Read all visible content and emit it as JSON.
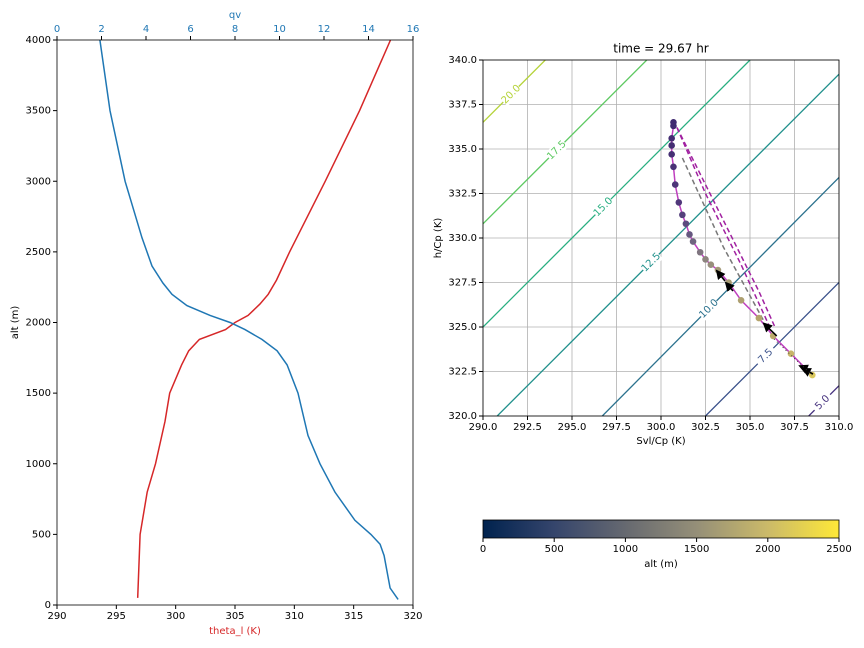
{
  "chart_data": [
    {
      "type": "profile",
      "xlabel": "theta_l (K)",
      "xlabel_color": "#d62728",
      "x2label": "qv",
      "x2_color": "#1f77b4",
      "ylabel": "alt (m)",
      "xlim": [
        290,
        320
      ],
      "xticks": [
        290,
        295,
        300,
        305,
        310,
        315,
        320
      ],
      "x2lim": [
        0,
        16
      ],
      "x2ticks": [
        0,
        2,
        4,
        6,
        8,
        10,
        12,
        14,
        16
      ],
      "ylim": [
        0,
        4000
      ],
      "yticks": [
        0,
        500,
        1000,
        1500,
        2000,
        2500,
        3000,
        3500,
        4000
      ],
      "series": [
        {
          "color": "#d62728",
          "axis": "x",
          "x": [
            296.8,
            297.0,
            297.6,
            298.3,
            299.1,
            299.5,
            300.5,
            301.1,
            302.0,
            304.2,
            305.0,
            306.1,
            307.1,
            307.8,
            308.5,
            309.6,
            312.6,
            315.5,
            318.1
          ],
          "y": [
            50,
            500,
            800,
            1000,
            1300,
            1500,
            1700,
            1800,
            1880,
            1950,
            2000,
            2050,
            2130,
            2200,
            2300,
            2500,
            3000,
            3500,
            4000
          ]
        },
        {
          "color": "#1f77b4",
          "axis": "x2",
          "x": [
            15.33,
            14.97,
            14.7,
            14.52,
            14.11,
            13.39,
            12.49,
            11.82,
            11.28,
            10.83,
            10.34,
            9.89,
            9.21,
            8.45,
            7.78,
            6.88,
            5.84,
            5.17,
            4.76,
            4.27,
            3.82,
            3.06,
            2.38,
            1.93
          ],
          "y": [
            40,
            120,
            350,
            430,
            500,
            600,
            800,
            1000,
            1200,
            1500,
            1700,
            1800,
            1880,
            1950,
            2000,
            2050,
            2120,
            2200,
            2280,
            2400,
            2600,
            3000,
            3500,
            4000
          ]
        }
      ]
    },
    {
      "type": "scatter",
      "title": "time = 29.67 hr",
      "xlabel": "Svl/Cp (K)",
      "ylabel": "h/Cp (K)",
      "xlim": [
        290,
        310
      ],
      "xticks": [
        {
          "value": 290,
          "label": "290.0"
        },
        {
          "value": 292.5,
          "label": "292.5"
        },
        {
          "value": 295,
          "label": "295.0"
        },
        {
          "value": 297.5,
          "label": "297.5"
        },
        {
          "value": 300,
          "label": "300.0"
        },
        {
          "value": 302.5,
          "label": "302.5"
        },
        {
          "value": 305,
          "label": "305.0"
        },
        {
          "value": 307.5,
          "label": "307.5"
        },
        {
          "value": 310,
          "label": "310.0"
        }
      ],
      "ylim": [
        320,
        340
      ],
      "yticks": [
        {
          "value": 320,
          "label": "320.0"
        },
        {
          "value": 322.5,
          "label": "322.5"
        },
        {
          "value": 325,
          "label": "325.0"
        },
        {
          "value": 327.5,
          "label": "327.5"
        },
        {
          "value": 330,
          "label": "330.0"
        },
        {
          "value": 332.5,
          "label": "332.5"
        },
        {
          "value": 335,
          "label": "335.0"
        },
        {
          "value": 337.5,
          "label": "337.5"
        },
        {
          "value": 340,
          "label": "340.0"
        }
      ],
      "grid": true,
      "contours": [
        {
          "label": "5.0",
          "color": "#46327e",
          "x": [
            308.3,
            310
          ],
          "y": [
            320,
            321.7
          ]
        },
        {
          "label": "7.5",
          "color": "#3b528b",
          "x": [
            302.5,
            310
          ],
          "y": [
            320,
            327.5
          ]
        },
        {
          "label": "10.0",
          "color": "#2c728e",
          "x": [
            296.7,
            310
          ],
          "y": [
            320,
            333.4
          ]
        },
        {
          "label": "12.5",
          "color": "#21918c",
          "x": [
            290.8,
            310
          ],
          "y": [
            320,
            339.2
          ]
        },
        {
          "label": "15.0",
          "color": "#28ae80",
          "x": [
            290,
            305
          ],
          "y": [
            325,
            340
          ]
        },
        {
          "label": "17.5",
          "color": "#5ec962",
          "x": [
            290,
            299.2
          ],
          "y": [
            330.8,
            340
          ]
        },
        {
          "label": "20.0",
          "color": "#b5d33a",
          "x": [
            290,
            293.5
          ],
          "y": [
            336.5,
            340
          ]
        }
      ],
      "line_color": "#bf3fbf",
      "dashed": [
        {
          "color": "#a020a0",
          "x": [
            300.9,
            302.5,
            304.5,
            306.2
          ],
          "y": [
            336.2,
            332.5,
            328.5,
            324.8
          ]
        },
        {
          "color": "#a020a0",
          "x": [
            300.9,
            303.5,
            305.5,
            306.4
          ],
          "y": [
            336.2,
            331.0,
            327.0,
            325.0
          ]
        },
        {
          "color": "#777777",
          "x": [
            301.2,
            303.5,
            305.8
          ],
          "y": [
            334.5,
            329.5,
            325.3
          ]
        }
      ],
      "points": {
        "x": [
          300.7,
          300.7,
          300.6,
          300.6,
          300.6,
          300.7,
          300.8,
          301.0,
          301.2,
          301.4,
          301.6,
          301.8,
          302.2,
          302.5,
          302.8,
          303.2,
          303.8,
          304.5,
          305.5,
          306.3,
          307.3,
          308.5
        ],
        "y": [
          336.5,
          336.3,
          335.6,
          335.2,
          334.7,
          334.0,
          333.0,
          332.0,
          331.3,
          330.8,
          330.2,
          329.8,
          329.2,
          328.8,
          328.5,
          328.2,
          327.5,
          326.5,
          325.5,
          324.5,
          323.5,
          322.3
        ],
        "colors": [
          "#3f2a70",
          "#3f2a70",
          "#432d72",
          "#432d72",
          "#462f74",
          "#4a3276",
          "#4d3578",
          "#50387a",
          "#55407c",
          "#5b4a7e",
          "#65577f",
          "#706480",
          "#7f7580",
          "#8d847f",
          "#988f7c",
          "#a49a78",
          "#a89c74",
          "#ad9f70",
          "#b4a46c",
          "#bca96a",
          "#c9b56a",
          "#dcc95e"
        ]
      }
    },
    {
      "type": "colorbar",
      "xlabel": "alt (m)",
      "colormap": "cividis",
      "xlim": [
        0,
        2500
      ],
      "xticks": [
        0,
        500,
        1000,
        1500,
        2000,
        2500
      ]
    }
  ]
}
